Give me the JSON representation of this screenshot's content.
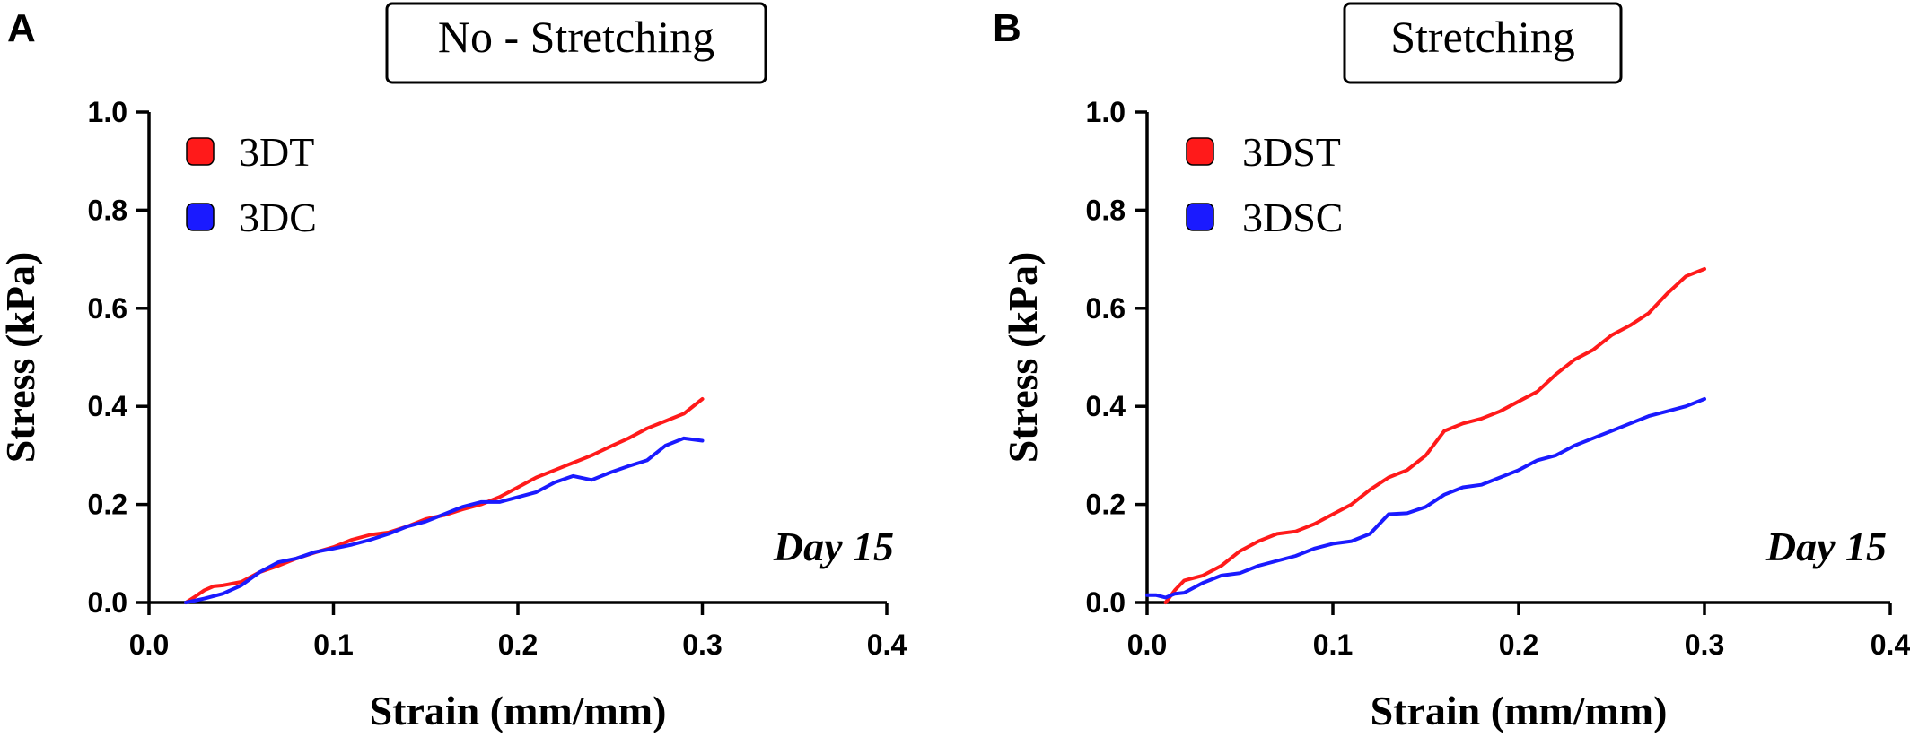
{
  "chart_data": [
    {
      "panel_label": "A",
      "type": "line",
      "title": "No - Stretching",
      "xlabel": "Strain (mm/mm)",
      "ylabel": "Stress (kPa)",
      "xlim": [
        0.0,
        0.4
      ],
      "ylim": [
        0.0,
        1.0
      ],
      "xticks": [
        "0.0",
        "0.1",
        "0.2",
        "0.3",
        "0.4"
      ],
      "yticks": [
        "0.0",
        "0.2",
        "0.4",
        "0.6",
        "0.8",
        "1.0"
      ],
      "grid": false,
      "legend_position": "top-left",
      "annotation": "Day 15",
      "series": [
        {
          "name": "3DT",
          "color": "#ff1a1a",
          "x": [
            0.02,
            0.025,
            0.03,
            0.035,
            0.04,
            0.05,
            0.06,
            0.07,
            0.08,
            0.09,
            0.1,
            0.11,
            0.12,
            0.13,
            0.14,
            0.15,
            0.16,
            0.17,
            0.18,
            0.19,
            0.2,
            0.21,
            0.22,
            0.23,
            0.24,
            0.25,
            0.26,
            0.27,
            0.28,
            0.29,
            0.3
          ],
          "y": [
            0.0,
            0.012,
            0.025,
            0.033,
            0.035,
            0.042,
            0.062,
            0.075,
            0.09,
            0.102,
            0.113,
            0.128,
            0.138,
            0.143,
            0.155,
            0.17,
            0.178,
            0.19,
            0.2,
            0.215,
            0.235,
            0.255,
            0.27,
            0.285,
            0.3,
            0.318,
            0.335,
            0.355,
            0.37,
            0.385,
            0.415
          ]
        },
        {
          "name": "3DC",
          "color": "#1a1aff",
          "x": [
            0.02,
            0.03,
            0.04,
            0.05,
            0.06,
            0.07,
            0.08,
            0.09,
            0.1,
            0.11,
            0.12,
            0.13,
            0.14,
            0.15,
            0.16,
            0.17,
            0.18,
            0.19,
            0.2,
            0.21,
            0.22,
            0.23,
            0.24,
            0.25,
            0.26,
            0.27,
            0.28,
            0.29,
            0.3
          ],
          "y": [
            0.0,
            0.008,
            0.018,
            0.035,
            0.062,
            0.082,
            0.09,
            0.103,
            0.11,
            0.118,
            0.128,
            0.14,
            0.155,
            0.165,
            0.18,
            0.195,
            0.205,
            0.205,
            0.215,
            0.225,
            0.245,
            0.258,
            0.25,
            0.265,
            0.278,
            0.29,
            0.32,
            0.335,
            0.33
          ]
        }
      ]
    },
    {
      "panel_label": "B",
      "type": "line",
      "title": "Stretching",
      "xlabel": "Strain (mm/mm)",
      "ylabel": "Stress (kPa)",
      "xlim": [
        0.0,
        0.4
      ],
      "ylim": [
        0.0,
        1.0
      ],
      "xticks": [
        "0.0",
        "0.1",
        "0.2",
        "0.3",
        "0.4"
      ],
      "yticks": [
        "0.0",
        "0.2",
        "0.4",
        "0.6",
        "0.8",
        "1.0"
      ],
      "grid": false,
      "legend_position": "top-left",
      "annotation": "Day 15",
      "series": [
        {
          "name": "3DST",
          "color": "#ff1a1a",
          "x": [
            0.01,
            0.015,
            0.02,
            0.03,
            0.04,
            0.05,
            0.06,
            0.07,
            0.08,
            0.09,
            0.1,
            0.11,
            0.12,
            0.13,
            0.14,
            0.15,
            0.16,
            0.17,
            0.18,
            0.19,
            0.2,
            0.21,
            0.22,
            0.23,
            0.24,
            0.25,
            0.26,
            0.27,
            0.28,
            0.29,
            0.3
          ],
          "y": [
            0.0,
            0.025,
            0.045,
            0.055,
            0.075,
            0.105,
            0.125,
            0.14,
            0.145,
            0.16,
            0.18,
            0.2,
            0.23,
            0.255,
            0.27,
            0.3,
            0.35,
            0.365,
            0.375,
            0.39,
            0.41,
            0.43,
            0.465,
            0.495,
            0.515,
            0.545,
            0.565,
            0.59,
            0.63,
            0.665,
            0.68
          ]
        },
        {
          "name": "3DSC",
          "color": "#1a1aff",
          "x": [
            0.0,
            0.005,
            0.01,
            0.015,
            0.02,
            0.03,
            0.04,
            0.05,
            0.06,
            0.07,
            0.08,
            0.09,
            0.1,
            0.11,
            0.12,
            0.13,
            0.14,
            0.15,
            0.16,
            0.17,
            0.18,
            0.19,
            0.2,
            0.21,
            0.22,
            0.23,
            0.24,
            0.25,
            0.26,
            0.27,
            0.28,
            0.29,
            0.3
          ],
          "y": [
            0.015,
            0.015,
            0.01,
            0.018,
            0.02,
            0.04,
            0.055,
            0.06,
            0.075,
            0.085,
            0.095,
            0.11,
            0.12,
            0.125,
            0.14,
            0.18,
            0.182,
            0.195,
            0.22,
            0.235,
            0.24,
            0.255,
            0.27,
            0.29,
            0.3,
            0.32,
            0.335,
            0.35,
            0.365,
            0.38,
            0.39,
            0.4,
            0.415
          ]
        }
      ]
    }
  ]
}
